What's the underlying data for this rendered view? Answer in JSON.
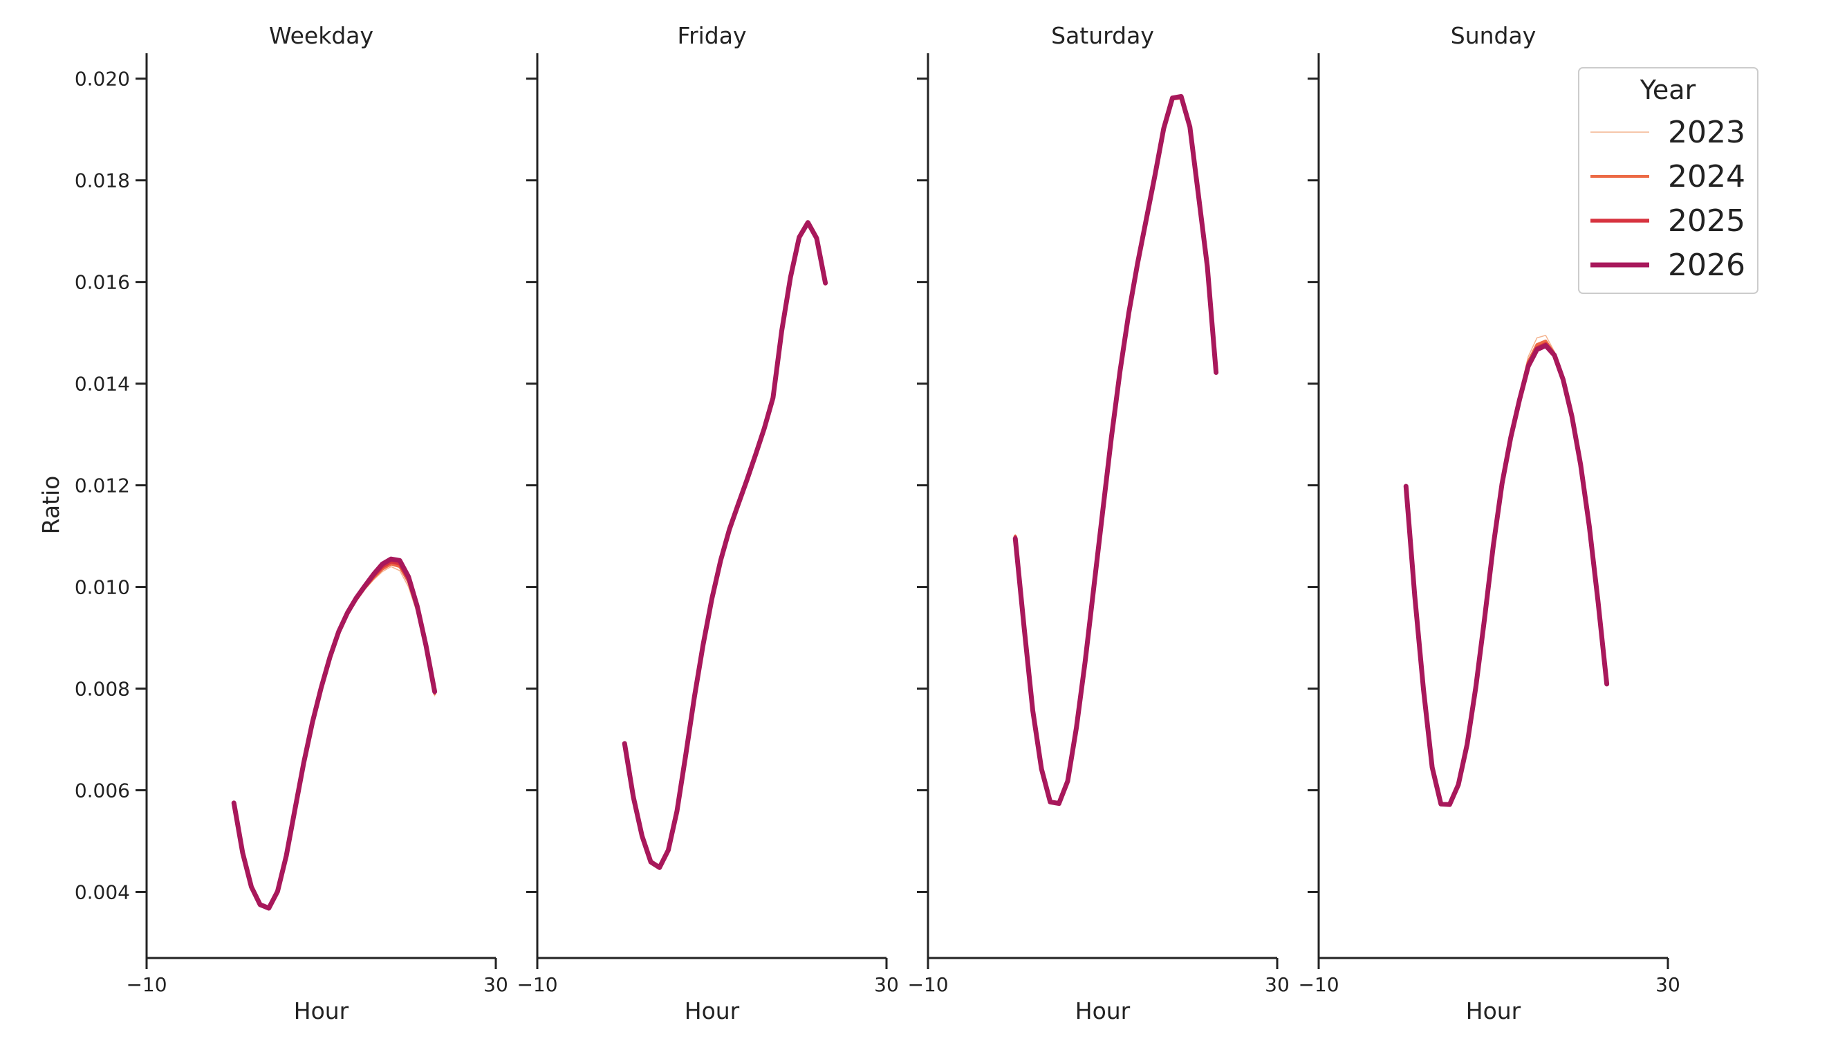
{
  "chart_data": {
    "type": "line",
    "ylabel": "Ratio",
    "xlabel": "Hour",
    "xlim": [
      -10,
      30
    ],
    "ylim": [
      0.0027,
      0.0205
    ],
    "xticks": [
      -10,
      30
    ],
    "xtick_labels": [
      "−10",
      "30"
    ],
    "yticks": [
      0.004,
      0.006,
      0.008,
      0.01,
      0.012,
      0.014,
      0.016,
      0.018,
      0.02
    ],
    "ytick_labels": [
      "0.004",
      "0.006",
      "0.008",
      "0.010",
      "0.012",
      "0.014",
      "0.016",
      "0.018",
      "0.020"
    ],
    "legend": {
      "title": "Year",
      "position": "top-right"
    },
    "series_styles": [
      {
        "name": "2023",
        "color": "#f4b38e",
        "width": 1.5
      },
      {
        "name": "2024",
        "color": "#ec6a45",
        "width": 4
      },
      {
        "name": "2025",
        "color": "#d7333f",
        "width": 5.5
      },
      {
        "name": "2026",
        "color": "#a8185b",
        "width": 7
      }
    ],
    "x": [
      0,
      1,
      2,
      3,
      4,
      5,
      6,
      7,
      8,
      9,
      10,
      11,
      12,
      13,
      14,
      15,
      16,
      17,
      18,
      19,
      20,
      21,
      22,
      23
    ],
    "panels": [
      {
        "title": "Weekday",
        "series": [
          {
            "name": "2023",
            "values": [
              0.00572,
              0.00475,
              0.00408,
              0.00373,
              0.00366,
              0.00399,
              0.00469,
              0.0056,
              0.00651,
              0.0073,
              0.00798,
              0.00858,
              0.00908,
              0.00944,
              0.00972,
              0.00995,
              0.01014,
              0.0103,
              0.0104,
              0.01032,
              0.01,
              0.00948,
              0.00875,
              0.00786
            ]
          },
          {
            "name": "2024",
            "values": [
              0.00573,
              0.00476,
              0.00409,
              0.00374,
              0.00367,
              0.004,
              0.0047,
              0.00561,
              0.00652,
              0.00732,
              0.008,
              0.0086,
              0.0091,
              0.00946,
              0.00974,
              0.00998,
              0.01018,
              0.01035,
              0.01045,
              0.0104,
              0.0101,
              0.00956,
              0.0088,
              0.0079
            ]
          },
          {
            "name": "2025",
            "values": [
              0.00574,
              0.00476,
              0.00409,
              0.00375,
              0.00368,
              0.00401,
              0.00471,
              0.00562,
              0.00653,
              0.00733,
              0.00801,
              0.00861,
              0.00911,
              0.00948,
              0.00976,
              0.01,
              0.01022,
              0.0104,
              0.0105,
              0.01046,
              0.01016,
              0.0096,
              0.00884,
              0.00793
            ]
          },
          {
            "name": "2026",
            "values": [
              0.00575,
              0.00477,
              0.0041,
              0.00375,
              0.00368,
              0.00401,
              0.00471,
              0.00563,
              0.00654,
              0.00734,
              0.00802,
              0.00862,
              0.00912,
              0.00949,
              0.00978,
              0.01002,
              0.01025,
              0.01045,
              0.01055,
              0.01052,
              0.0102,
              0.00962,
              0.00885,
              0.00794
            ]
          }
        ]
      },
      {
        "title": "Friday",
        "series": [
          {
            "name": "2023",
            "values": [
              0.0069,
              0.00585,
              0.00508,
              0.00457,
              0.00446,
              0.0048,
              0.00557,
              0.00667,
              0.00782,
              0.00885,
              0.00975,
              0.0105,
              0.01111,
              0.0116,
              0.01208,
              0.01258,
              0.0131,
              0.0137,
              0.01502,
              0.01607,
              0.01686,
              0.01715,
              0.01684,
              0.01596
            ]
          },
          {
            "name": "2024",
            "values": [
              0.00691,
              0.00586,
              0.00509,
              0.00458,
              0.00447,
              0.00481,
              0.00558,
              0.00668,
              0.00783,
              0.00886,
              0.00976,
              0.01051,
              0.01112,
              0.01161,
              0.01209,
              0.01259,
              0.01311,
              0.01371,
              0.01503,
              0.01608,
              0.01687,
              0.01716,
              0.01685,
              0.01597
            ]
          },
          {
            "name": "2025",
            "values": [
              0.00692,
              0.00586,
              0.00509,
              0.00458,
              0.00447,
              0.00481,
              0.00558,
              0.00668,
              0.00783,
              0.00886,
              0.00976,
              0.01051,
              0.01112,
              0.01161,
              0.01209,
              0.01259,
              0.01311,
              0.01371,
              0.01503,
              0.01608,
              0.01688,
              0.01717,
              0.01686,
              0.01597
            ]
          },
          {
            "name": "2026",
            "values": [
              0.00692,
              0.00587,
              0.0051,
              0.00459,
              0.00448,
              0.00482,
              0.00559,
              0.00669,
              0.00784,
              0.00887,
              0.00977,
              0.01052,
              0.01113,
              0.01162,
              0.0121,
              0.0126,
              0.01312,
              0.01372,
              0.01504,
              0.01609,
              0.01688,
              0.01717,
              0.01686,
              0.01598
            ]
          }
        ]
      },
      {
        "title": "Saturday",
        "series": [
          {
            "name": "2023",
            "values": [
              0.01103,
              0.00925,
              0.0076,
              0.00643,
              0.00577,
              0.00573,
              0.00615,
              0.0072,
              0.0085,
              0.00997,
              0.01144,
              0.0129,
              0.01422,
              0.01536,
              0.01633,
              0.0172,
              0.01807,
              0.01899,
              0.01958,
              0.0196,
              0.01899,
              0.01763,
              0.01627,
              0.01422
            ]
          },
          {
            "name": "2024",
            "values": [
              0.011,
              0.00924,
              0.00759,
              0.00643,
              0.00577,
              0.00573,
              0.00616,
              0.00721,
              0.00851,
              0.00998,
              0.01145,
              0.01291,
              0.01423,
              0.01537,
              0.01634,
              0.01721,
              0.01808,
              0.019,
              0.0196,
              0.01962,
              0.01901,
              0.01765,
              0.01628,
              0.01422
            ]
          },
          {
            "name": "2025",
            "values": [
              0.01098,
              0.00923,
              0.00758,
              0.00642,
              0.00577,
              0.00574,
              0.00617,
              0.00722,
              0.00852,
              0.00999,
              0.01146,
              0.01292,
              0.01424,
              0.01538,
              0.01635,
              0.01722,
              0.01809,
              0.01901,
              0.01961,
              0.01964,
              0.01903,
              0.01767,
              0.01629,
              0.01422
            ]
          },
          {
            "name": "2026",
            "values": [
              0.01095,
              0.00922,
              0.00757,
              0.00642,
              0.00577,
              0.00574,
              0.00618,
              0.00723,
              0.00853,
              0.01,
              0.01147,
              0.01293,
              0.01425,
              0.01539,
              0.01636,
              0.01723,
              0.0181,
              0.01902,
              0.01962,
              0.01965,
              0.01905,
              0.01768,
              0.0163,
              0.01422
            ]
          }
        ]
      },
      {
        "title": "Sunday",
        "series": [
          {
            "name": "2023",
            "values": [
              0.012,
              0.00985,
              0.008,
              0.00647,
              0.00575,
              0.00573,
              0.00612,
              0.00692,
              0.00805,
              0.00941,
              0.01085,
              0.01209,
              0.01302,
              0.0138,
              0.01453,
              0.0149,
              0.01495,
              0.01463,
              0.01412,
              0.0134,
              0.01245,
              0.01122,
              0.00974,
              0.00812
            ]
          },
          {
            "name": "2024",
            "values": [
              0.01199,
              0.00984,
              0.008,
              0.00646,
              0.00574,
              0.00573,
              0.00612,
              0.00691,
              0.00804,
              0.0094,
              0.01083,
              0.01206,
              0.01298,
              0.01374,
              0.01443,
              0.01477,
              0.01484,
              0.01459,
              0.0141,
              0.01338,
              0.01243,
              0.01121,
              0.00973,
              0.00811
            ]
          },
          {
            "name": "2025",
            "values": [
              0.01199,
              0.00984,
              0.00799,
              0.00646,
              0.00574,
              0.00572,
              0.00611,
              0.00691,
              0.00804,
              0.00939,
              0.01082,
              0.01204,
              0.01295,
              0.0137,
              0.01437,
              0.0147,
              0.01478,
              0.01457,
              0.01409,
              0.01337,
              0.01242,
              0.0112,
              0.00972,
              0.0081
            ]
          },
          {
            "name": "2026",
            "values": [
              0.01198,
              0.00983,
              0.00799,
              0.00645,
              0.00573,
              0.00572,
              0.00611,
              0.0069,
              0.00803,
              0.00938,
              0.01081,
              0.01203,
              0.01294,
              0.01368,
              0.01434,
              0.01467,
              0.01475,
              0.01456,
              0.01408,
              0.01336,
              0.01241,
              0.01119,
              0.00971,
              0.00809
            ]
          }
        ]
      }
    ]
  }
}
